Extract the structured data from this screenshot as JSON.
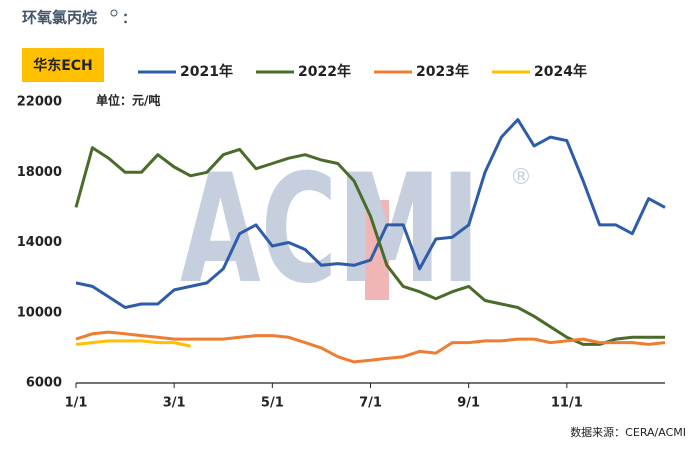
{
  "chart_data": {
    "type": "line",
    "title": "环氧氯丙烷",
    "title_suffix": "：",
    "label_box": "华东ECH",
    "unit_label": "单位：元/吨",
    "source": "数据来源：CERA/ACMI",
    "watermark": "ACMI",
    "watermark_mark": "®",
    "categories": [
      "1/1",
      null,
      null,
      null,
      null,
      null,
      "3/1",
      null,
      null,
      null,
      null,
      null,
      "5/1",
      null,
      null,
      null,
      null,
      null,
      "7/1",
      null,
      null,
      null,
      null,
      null,
      "9/1",
      null,
      null,
      null,
      null,
      null,
      "11/1",
      null,
      null,
      null,
      null,
      null,
      null
    ],
    "series": [
      {
        "name": "2021年",
        "color": "#2e5ca8",
        "values": [
          11700,
          11500,
          10900,
          10300,
          10500,
          10500,
          11300,
          11500,
          11700,
          12500,
          14500,
          15000,
          13800,
          14000,
          13600,
          12700,
          12800,
          12700,
          13000,
          15000,
          15000,
          12500,
          14200,
          14300,
          15000,
          18000,
          20000,
          21000,
          19500,
          20000,
          19800,
          17500,
          15000,
          15000,
          14500,
          16500,
          16000
        ]
      },
      {
        "name": "2022年",
        "color": "#4a6b2a",
        "values": [
          16000,
          19400,
          18800,
          18000,
          18000,
          19000,
          18300,
          17800,
          18000,
          19000,
          19300,
          18200,
          18500,
          18800,
          19000,
          18700,
          18500,
          17500,
          15500,
          12700,
          11500,
          11200,
          10800,
          11200,
          11500,
          10700,
          10500,
          10300,
          9800,
          9200,
          8600,
          8200,
          8200,
          8500,
          8600,
          8600,
          8600
        ]
      },
      {
        "name": "2023年",
        "color": "#ed7d31",
        "values": [
          8500,
          8800,
          8900,
          8800,
          8700,
          8600,
          8500,
          8500,
          8500,
          8500,
          8600,
          8700,
          8700,
          8600,
          8300,
          8000,
          7500,
          7200,
          7300,
          7400,
          7500,
          7800,
          7700,
          8300,
          8300,
          8400,
          8400,
          8500,
          8500,
          8300,
          8400,
          8500,
          8300,
          8300,
          8300,
          8200,
          8300
        ]
      },
      {
        "name": "2024年",
        "color": "#ffc000",
        "values": [
          8200,
          8300,
          8400,
          8400,
          8400,
          8300,
          8300,
          8100,
          null,
          null,
          null,
          null,
          null,
          null,
          null,
          null,
          null,
          null,
          null,
          null,
          null,
          null,
          null,
          null,
          null,
          null,
          null,
          null,
          null,
          null,
          null,
          null,
          null,
          null,
          null,
          null,
          null
        ]
      }
    ],
    "ylim": [
      6000,
      22000
    ],
    "yticks": [
      6000,
      10000,
      14000,
      18000,
      22000
    ],
    "grid": false
  }
}
